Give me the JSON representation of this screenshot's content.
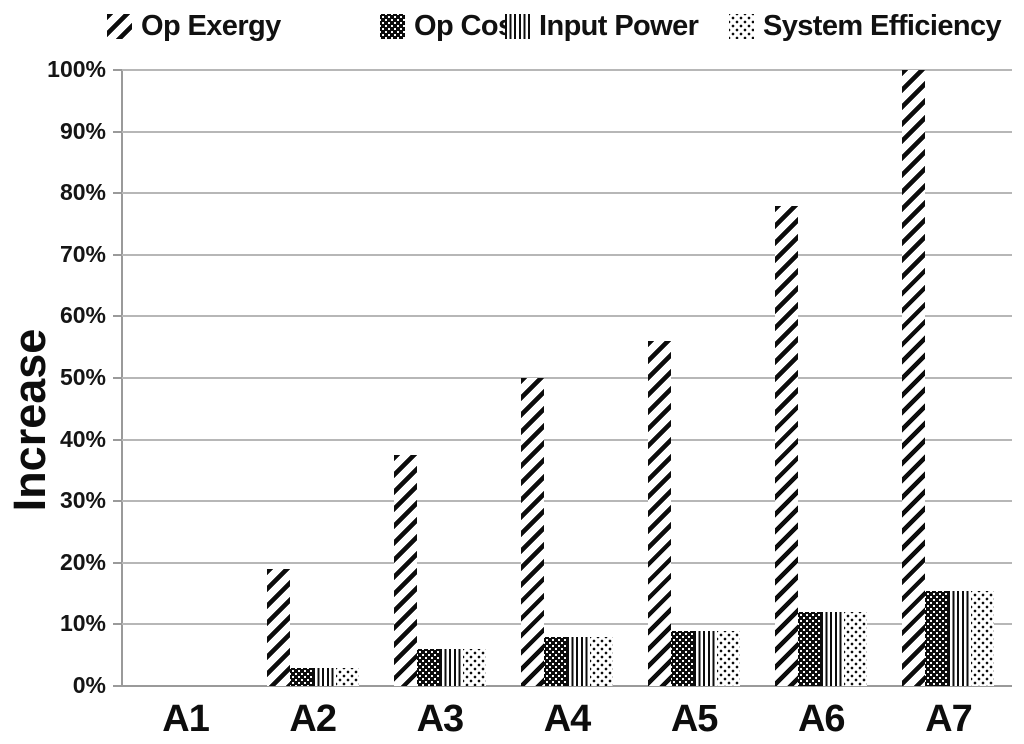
{
  "chart_data": {
    "type": "bar",
    "title": "",
    "xlabel": "",
    "ylabel": "Increase",
    "categories": [
      "A1",
      "A2",
      "A3",
      "A4",
      "A5",
      "A6",
      "A7"
    ],
    "series": [
      {
        "name": "Op Exergy",
        "pattern": "diagonal-stripes",
        "values": [
          0,
          19,
          37.5,
          50,
          56,
          78,
          100
        ]
      },
      {
        "name": "Op Cost",
        "pattern": "white-dots-on-black",
        "values": [
          0,
          3,
          6,
          8,
          9,
          12,
          15.5
        ]
      },
      {
        "name": "Input Power",
        "pattern": "vertical-stripes",
        "values": [
          0,
          3,
          6,
          8,
          9,
          12,
          15.5
        ]
      },
      {
        "name": "System Efficiency",
        "pattern": "black-dots-on-white",
        "values": [
          0,
          3,
          6,
          8,
          9,
          12,
          15.5
        ]
      }
    ],
    "ylim": [
      0,
      100
    ],
    "ytick_labels": [
      "0%",
      "10%",
      "20%",
      "30%",
      "40%",
      "50%",
      "60%",
      "70%",
      "80%",
      "90%",
      "100%"
    ],
    "grid": true,
    "legend_position": "top"
  },
  "colors": {
    "ink": "#0d0d0d",
    "gridline": "#b7b7b7",
    "axis": "#9a9a9a",
    "background": "#ffffff"
  }
}
